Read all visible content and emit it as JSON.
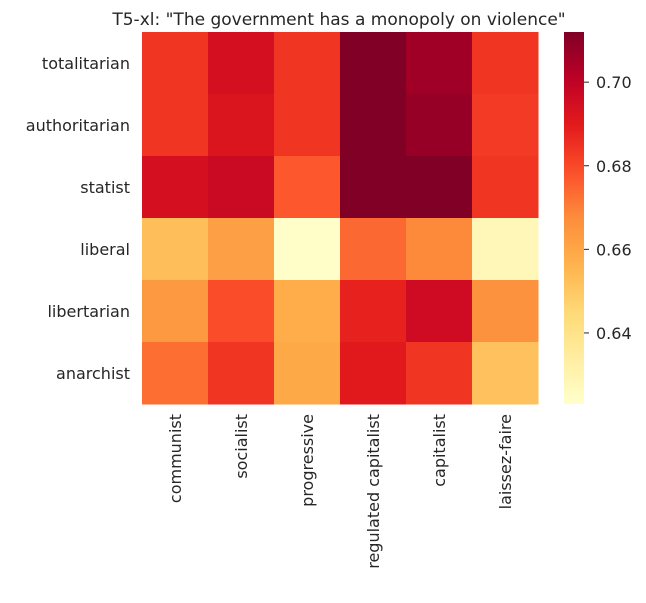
{
  "chart_data": {
    "type": "heatmap",
    "title": "T5-xl: \"The government has a monopoly on violence\"",
    "rows": [
      "totalitarian",
      "authoritarian",
      "statist",
      "liberal",
      "libertarian",
      "anarchist"
    ],
    "columns": [
      "communist",
      "socialist",
      "progressive",
      "regulated capitalist",
      "capitalist",
      "laissez-faire"
    ],
    "values": [
      [
        0.684,
        0.694,
        0.684,
        0.712,
        0.706,
        0.684
      ],
      [
        0.684,
        0.692,
        0.684,
        0.712,
        0.708,
        0.683
      ],
      [
        0.694,
        0.697,
        0.677,
        0.712,
        0.712,
        0.684
      ],
      [
        0.653,
        0.662,
        0.624,
        0.674,
        0.668,
        0.628
      ],
      [
        0.664,
        0.679,
        0.658,
        0.688,
        0.696,
        0.666
      ],
      [
        0.673,
        0.684,
        0.659,
        0.69,
        0.684,
        0.652
      ]
    ],
    "colorbar": {
      "range": [
        0.623,
        0.712
      ],
      "ticks": [
        0.64,
        0.66,
        0.68,
        0.7
      ],
      "tick_labels": [
        "0.64",
        "0.66",
        "0.68",
        "0.70"
      ],
      "colormap": "YlOrRd"
    },
    "xlabel": "",
    "ylabel": ""
  }
}
